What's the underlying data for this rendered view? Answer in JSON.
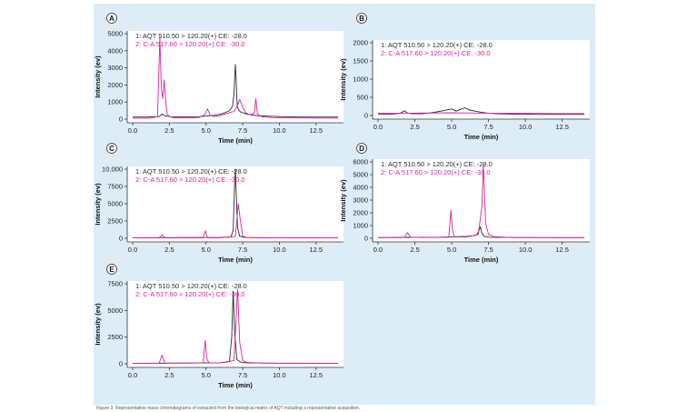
{
  "colors": {
    "panel_bg": "#dcedf8",
    "plot_bg": "#ffffff",
    "series1": "#2a2a2a",
    "series2": "#d6249f",
    "axis": "#333333"
  },
  "caption": "Figure 3. Representative mass chromatograms of extracted from the biological matrix of AQT including a representative acquisition.",
  "chart_data": [
    {
      "panel": "A",
      "type": "line",
      "xlabel": "Time (min)",
      "ylabel": "Intensity (ev)",
      "xlim": [
        0,
        14
      ],
      "xticks": [
        0.0,
        2.5,
        5.0,
        7.5,
        10.0,
        12.5
      ],
      "xtick_labels": [
        "0.0",
        "2.5",
        "5.0",
        "7.5",
        "10.0",
        "12.5"
      ],
      "ylim": [
        0,
        5000
      ],
      "yticks": [
        0,
        1000,
        2000,
        3000,
        4000,
        5000
      ],
      "ytick_labels": [
        "0",
        "1000",
        "2000",
        "3000",
        "4000",
        "5000"
      ],
      "series": [
        {
          "name": "1: AQT 510.50 > 120.20(+) CE: -28.0",
          "color": "#2a2a2a",
          "x": [
            0,
            1,
            1.8,
            2.0,
            2.2,
            2.6,
            3.5,
            4.5,
            5.0,
            5.5,
            6.0,
            6.3,
            6.6,
            6.8,
            6.9,
            7.0,
            7.05,
            7.1,
            7.15,
            7.25,
            7.4,
            7.6,
            7.8,
            8.0,
            8.5,
            9,
            10,
            11,
            12,
            14
          ],
          "y": [
            120,
            120,
            150,
            300,
            200,
            140,
            130,
            140,
            180,
            220,
            300,
            380,
            500,
            750,
            1400,
            3200,
            2400,
            1200,
            700,
            500,
            400,
            350,
            300,
            260,
            200,
            180,
            150,
            130,
            120,
            120
          ]
        },
        {
          "name": "2: C-A 517.60 > 120.20(+) CE: -30.0",
          "color": "#d6249f",
          "x": [
            0,
            1.2,
            1.7,
            1.85,
            1.95,
            2.05,
            2.15,
            2.25,
            2.35,
            2.5,
            2.8,
            3.5,
            4.5,
            4.9,
            5.1,
            5.3,
            5.6,
            6.0,
            6.5,
            6.9,
            7.1,
            7.3,
            7.5,
            7.7,
            8.0,
            8.3,
            8.4,
            8.5,
            8.8,
            9.5,
            11,
            14
          ],
          "y": [
            60,
            60,
            150,
            4800,
            1800,
            1200,
            2300,
            1100,
            300,
            150,
            80,
            70,
            90,
            250,
            600,
            200,
            150,
            220,
            350,
            450,
            700,
            1150,
            700,
            380,
            260,
            350,
            1200,
            300,
            140,
            90,
            70,
            60
          ]
        }
      ]
    },
    {
      "panel": "B",
      "type": "line",
      "xlabel": "Time (min)",
      "ylabel": "Intensity (ev)",
      "xlim": [
        0,
        14
      ],
      "xticks": [
        0.0,
        2.5,
        5.0,
        7.5,
        10.0,
        12.5
      ],
      "xtick_labels": [
        "0.0",
        "2.5",
        "5.0",
        "7.5",
        "10.0",
        "12.5"
      ],
      "ylim": [
        0,
        2000
      ],
      "yticks": [
        0,
        500,
        1000,
        1500,
        2000
      ],
      "ytick_labels": [
        "0",
        "500",
        "1000",
        "1500",
        "2000"
      ],
      "series": [
        {
          "name": "1: AQT 510.50 > 120.20(+) CE: -28.0",
          "color": "#2a2a2a",
          "x": [
            0,
            1,
            1.5,
            1.8,
            2.0,
            2.3,
            3,
            3.5,
            4,
            4.5,
            5,
            5.3,
            5.6,
            5.9,
            6.2,
            6.6,
            7,
            7.5,
            8,
            9,
            10,
            11,
            12,
            14
          ],
          "y": [
            30,
            40,
            60,
            130,
            70,
            50,
            50,
            70,
            100,
            140,
            180,
            120,
            170,
            210,
            150,
            120,
            90,
            60,
            50,
            40,
            40,
            30,
            30,
            30
          ]
        },
        {
          "name": "2: C-A 517.60 > 120.20(+) CE: -30.0",
          "color": "#d6249f",
          "x": [
            0,
            2,
            4,
            5,
            6,
            7,
            8,
            10,
            12,
            14
          ],
          "y": [
            60,
            65,
            70,
            75,
            70,
            65,
            60,
            60,
            55,
            55
          ]
        }
      ]
    },
    {
      "panel": "C",
      "type": "line",
      "xlabel": "Time (min)",
      "ylabel": "Intensity (ev)",
      "xlim": [
        0,
        14
      ],
      "xticks": [
        0.0,
        2.5,
        5.0,
        7.5,
        10.0,
        12.5
      ],
      "xtick_labels": [
        "0.0",
        "2.5",
        "5.0",
        "7.5",
        "10.0",
        "12.5"
      ],
      "ylim": [
        0,
        10000
      ],
      "yticks": [
        0,
        2500,
        5000,
        7500,
        10000
      ],
      "ytick_labels": [
        "0",
        "2500",
        "5000",
        "7500",
        "10,000"
      ],
      "series": [
        {
          "name": "1: AQT 510.50 > 120.20(+) CE: -28.0",
          "color": "#2a2a2a",
          "x": [
            0,
            2,
            4,
            6,
            6.7,
            6.85,
            6.95,
            7.0,
            7.05,
            7.15,
            7.3,
            7.6,
            8,
            10,
            14
          ],
          "y": [
            80,
            90,
            100,
            120,
            200,
            1200,
            8000,
            10000,
            7000,
            1500,
            300,
            150,
            100,
            80,
            70
          ]
        },
        {
          "name": "2: C-A 517.60 > 120.20(+) CE: -30.0",
          "color": "#d6249f",
          "x": [
            0,
            1.8,
            2.0,
            2.2,
            3,
            4.8,
            4.95,
            5.05,
            5.2,
            6,
            7.0,
            7.2,
            7.35,
            7.5,
            7.8,
            9,
            14
          ],
          "y": [
            50,
            60,
            500,
            70,
            50,
            60,
            1100,
            300,
            60,
            80,
            250,
            5000,
            2500,
            300,
            100,
            60,
            50
          ]
        }
      ]
    },
    {
      "panel": "D",
      "type": "line",
      "xlabel": "Time (min)",
      "ylabel": "Intensity (ev)",
      "xlim": [
        0,
        14
      ],
      "xticks": [
        0.0,
        2.5,
        5.0,
        7.5,
        10.0,
        12.5
      ],
      "xtick_labels": [
        "0.0",
        "2.5",
        "5.0",
        "7.5",
        "10.0",
        "12.5"
      ],
      "ylim": [
        0,
        6000
      ],
      "yticks": [
        0,
        1000,
        2000,
        3000,
        4000,
        5000,
        6000
      ],
      "ytick_labels": [
        "0",
        "1000",
        "2000",
        "3000",
        "4000",
        "5000",
        "6000"
      ],
      "series": [
        {
          "name": "1: AQT 510.50 > 120.20(+) CE: -28.0",
          "color": "#2a2a2a",
          "x": [
            0,
            2,
            4,
            6,
            6.7,
            6.85,
            6.95,
            7.05,
            7.2,
            7.6,
            10,
            14
          ],
          "y": [
            60,
            70,
            80,
            150,
            250,
            600,
            900,
            400,
            150,
            80,
            60,
            50
          ]
        },
        {
          "name": "2: C-A 517.60 > 120.20(+) CE: -30.0",
          "color": "#d6249f",
          "x": [
            0,
            1.8,
            2.0,
            2.2,
            3,
            4.8,
            4.95,
            5.05,
            5.2,
            6,
            6.8,
            7.05,
            7.15,
            7.3,
            7.5,
            7.8,
            8,
            9,
            14
          ],
          "y": [
            50,
            60,
            450,
            80,
            60,
            80,
            2200,
            600,
            100,
            100,
            300,
            2500,
            5800,
            1200,
            300,
            150,
            120,
            60,
            50
          ]
        }
      ]
    },
    {
      "panel": "E",
      "type": "line",
      "xlabel": "Time (min)",
      "ylabel": "Intensity (ev)",
      "xlim": [
        0,
        14
      ],
      "xticks": [
        0.0,
        2.5,
        5.0,
        7.5,
        10.0,
        12.5
      ],
      "xtick_labels": [
        "0.0",
        "2.5",
        "5.0",
        "7.5",
        "10.0",
        "12.5"
      ],
      "ylim": [
        0,
        7500
      ],
      "yticks": [
        0,
        2500,
        5000,
        7500
      ],
      "ytick_labels": [
        "0",
        "2500",
        "5000",
        "7500"
      ],
      "series": [
        {
          "name": "1: AQT 510.50 > 120.20(+) CE: -28.0",
          "color": "#2a2a2a",
          "x": [
            0,
            2,
            4,
            6,
            6.6,
            6.75,
            6.85,
            6.95,
            7.1,
            7.4,
            8,
            10,
            14
          ],
          "y": [
            50,
            60,
            70,
            100,
            200,
            2500,
            6800,
            3000,
            400,
            120,
            80,
            60,
            50
          ]
        },
        {
          "name": "2: C-A 517.60 > 120.20(+) CE: -30.0",
          "color": "#d6249f",
          "x": [
            0,
            1.8,
            2.0,
            2.2,
            3,
            4.8,
            4.95,
            5.05,
            5.2,
            6,
            6.9,
            7.05,
            7.15,
            7.3,
            7.5,
            7.8,
            9,
            14
          ],
          "y": [
            50,
            60,
            800,
            80,
            60,
            80,
            2200,
            500,
            80,
            100,
            300,
            4000,
            7000,
            2000,
            300,
            120,
            60,
            50
          ]
        }
      ]
    }
  ]
}
